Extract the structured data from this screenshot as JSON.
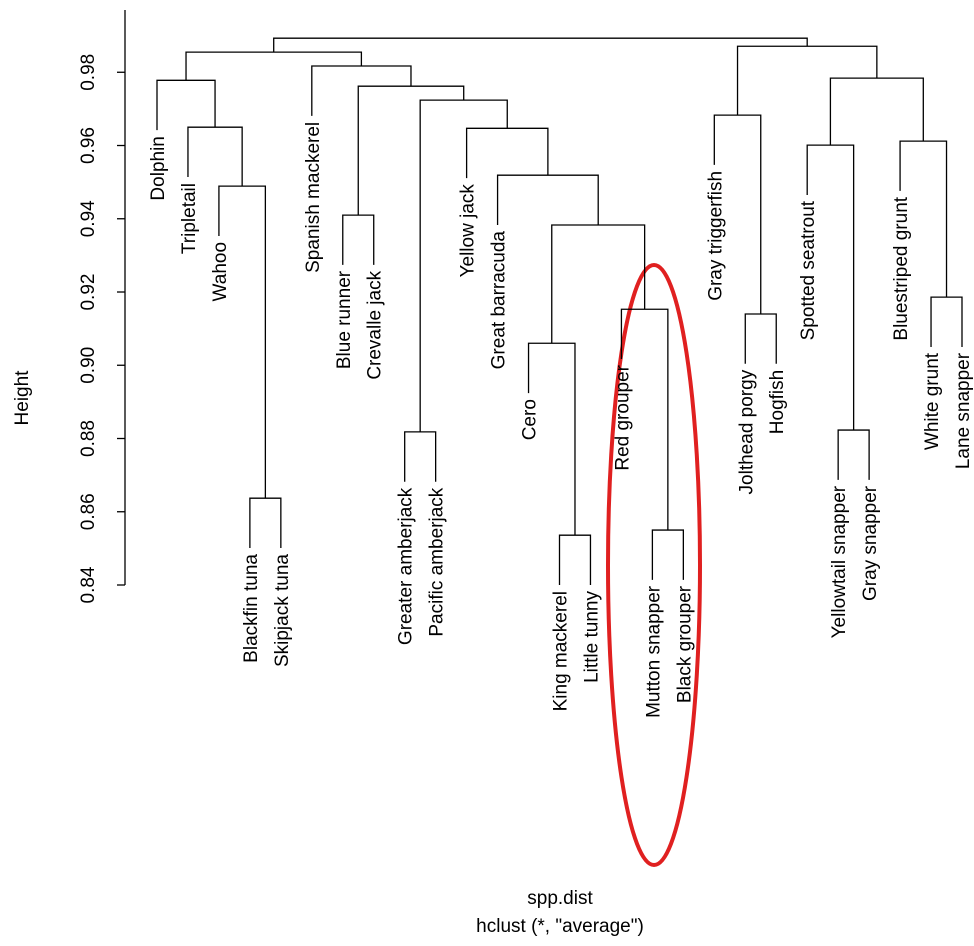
{
  "chart_data": {
    "type": "dendrogram",
    "x_label": "spp.dist",
    "subtitle": "hclust (*, \"average\")",
    "y_label": "Height",
    "ylim": [
      0.84,
      0.997
    ],
    "yticks": [
      0.84,
      0.86,
      0.88,
      {
        "value": 0.9,
        "label": "0.90"
      },
      0.92,
      0.94,
      0.96,
      0.98
    ],
    "hang": 0.0136,
    "labels": [
      "Dolphin",
      "Tripletail",
      "Wahoo",
      "Blackfin tuna",
      "Skipjack tuna",
      "Spanish mackerel",
      "Blue runner",
      "Crevalle jack",
      "Greater amberjack",
      "Pacific amberjack",
      "Yellow jack",
      "Great barracuda",
      "Cero",
      "King mackerel",
      "Little tunny",
      "Red grouper",
      "Mutton snapper",
      "Black grouper",
      "Gray triggerfish",
      "Jolthead porgy",
      "Hogfish",
      "Spotted seatrout",
      "Yellowtail snapper",
      "Gray snapper",
      "Bluestriped grunt",
      "White grunt",
      "Lane snapper"
    ],
    "merges": [
      [
        -4,
        -5,
        0.8637
      ],
      [
        -14,
        -15,
        0.8536
      ],
      [
        -17,
        -18,
        0.855
      ],
      [
        -9,
        -10,
        0.8818
      ],
      [
        -23,
        -24,
        0.8823
      ],
      [
        -20,
        -21,
        0.914
      ],
      [
        -26,
        -27,
        0.9186
      ],
      [
        -13,
        2,
        0.906
      ],
      [
        -16,
        3,
        0.9153
      ],
      [
        -7,
        -8,
        0.941
      ],
      [
        -3,
        1,
        0.9489
      ],
      [
        8,
        9,
        0.9383
      ],
      [
        -12,
        12,
        0.9519
      ],
      [
        -11,
        13,
        0.9647
      ],
      [
        -2,
        11,
        0.965
      ],
      [
        -19,
        6,
        0.9683
      ],
      [
        -22,
        5,
        0.9601
      ],
      [
        -25,
        7,
        0.9612
      ],
      [
        17,
        18,
        0.9784
      ],
      [
        4,
        14,
        0.9724
      ],
      [
        10,
        20,
        0.9762
      ],
      [
        -1,
        15,
        0.9778
      ],
      [
        -6,
        21,
        0.9817
      ],
      [
        16,
        19,
        0.9871
      ],
      [
        22,
        23,
        0.9855
      ],
      [
        25,
        24,
        0.9893
      ]
    ]
  }
}
